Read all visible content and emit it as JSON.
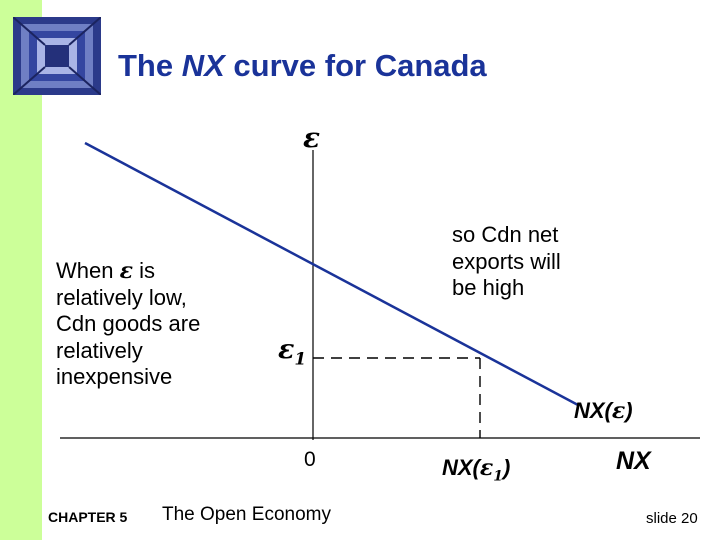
{
  "slide": {
    "title_before": "The ",
    "title_italic": "NX",
    "title_after": " curve for Canada"
  },
  "axes": {
    "y_label": "ε",
    "x_label": "NX",
    "origin_label": "0"
  },
  "curve": {
    "label_prefix": "NX(",
    "label_symbol": "ε",
    "label_suffix": ")"
  },
  "point": {
    "eps1_symbol": "ε",
    "eps1_sub": "1",
    "nx_prefix": "NX(",
    "nx_symbol": "ε",
    "nx_sub": "1",
    "nx_suffix": ")"
  },
  "annotation_left": {
    "line1_before": "When ",
    "line1_symbol": "ε",
    "line1_after": "  is",
    "line2": "relatively low,",
    "line3": "Cdn goods are",
    "line4": "relatively",
    "line5": "inexpensive"
  },
  "annotation_right": {
    "line1": "so Cdn net",
    "line2": "exports will",
    "line3": "be high"
  },
  "footer": {
    "chapter": "CHAPTER 5",
    "book": "The Open Economy",
    "slide": "slide 20"
  },
  "colors": {
    "title": "#1a3399",
    "curve": "#1a3399",
    "sidebar": "#ccff99"
  }
}
